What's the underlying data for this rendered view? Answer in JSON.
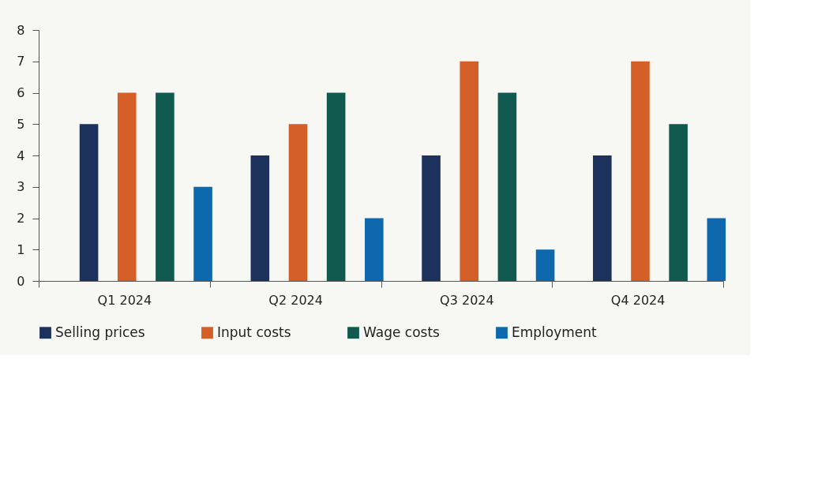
{
  "chart_data": {
    "type": "bar",
    "categories": [
      "Q1 2024",
      "Q2 2024",
      "Q3 2024",
      "Q4 2024"
    ],
    "series": [
      {
        "name": "Selling prices",
        "color": "#1c325c",
        "values": [
          5,
          4,
          4,
          4
        ]
      },
      {
        "name": "Input costs",
        "color": "#d45f27",
        "values": [
          6,
          5,
          7,
          7
        ]
      },
      {
        "name": "Wage costs",
        "color": "#105a4f",
        "values": [
          6,
          6,
          6,
          5
        ]
      },
      {
        "name": "Employment",
        "color": "#0d68ad",
        "values": [
          3,
          2,
          1,
          2
        ]
      }
    ],
    "ylim": [
      0,
      8
    ],
    "yticks": [
      0,
      1,
      2,
      3,
      4,
      5,
      6,
      7,
      8
    ],
    "grid": false,
    "legend": "bottom"
  }
}
